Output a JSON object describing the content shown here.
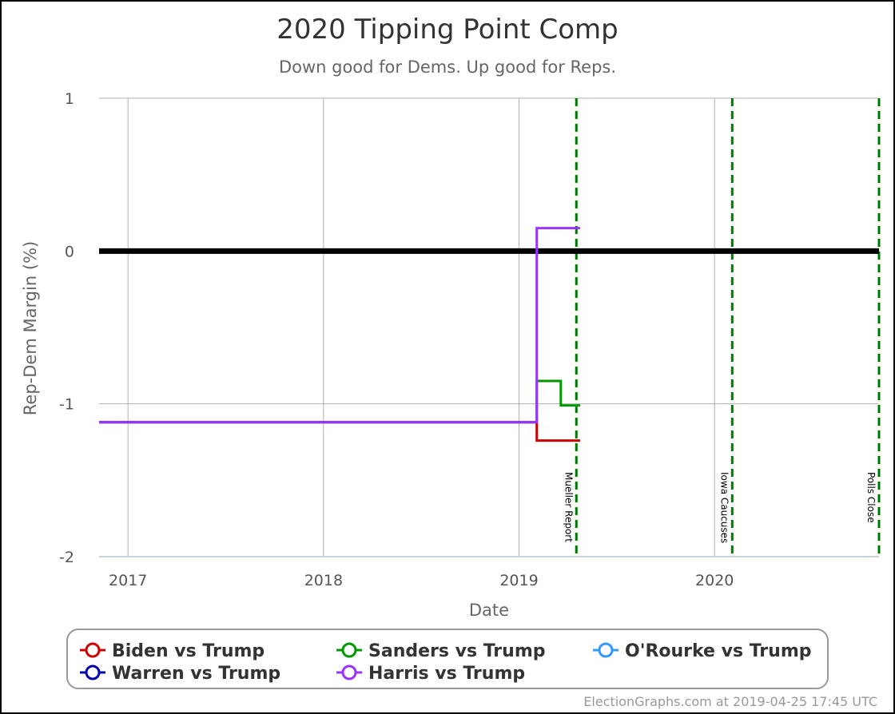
{
  "chart_data": {
    "type": "line",
    "title": "2020 Tipping Point Comp",
    "subtitle": "Down good for Dems. Up good for Reps.",
    "xlabel": "Date",
    "ylabel": "Rep-Dem Margin (%)",
    "xlim": [
      "2016-11-08",
      "2020-11-03"
    ],
    "ylim": [
      -2,
      1
    ],
    "x_ticks": [
      {
        "date": "2017-01-01",
        "label": "2017"
      },
      {
        "date": "2018-01-01",
        "label": "2018"
      },
      {
        "date": "2019-01-01",
        "label": "2019"
      },
      {
        "date": "2020-01-01",
        "label": "2020"
      }
    ],
    "y_ticks": [
      {
        "value": 1,
        "label": "1"
      },
      {
        "value": 0,
        "label": "0"
      },
      {
        "value": -1,
        "label": "-1"
      },
      {
        "value": -2,
        "label": "-2"
      }
    ],
    "grid": true,
    "reference_line": 0,
    "events": [
      {
        "date": "2019-04-18",
        "label": "Mueller Report"
      },
      {
        "date": "2020-02-03",
        "label": "Iowa Caucuses"
      },
      {
        "date": "2020-11-03",
        "label": "Polls Close"
      }
    ],
    "legend_position": "bottom",
    "series": [
      {
        "name": "Biden vs Trump",
        "color": "#cc0000",
        "points": [
          [
            "2016-11-08",
            -1.12
          ],
          [
            "2019-02-03",
            -1.12
          ],
          [
            "2019-02-03",
            -1.24
          ],
          [
            "2019-04-25",
            -1.24
          ]
        ]
      },
      {
        "name": "Sanders vs Trump",
        "color": "#009900",
        "points": [
          [
            "2016-11-08",
            -1.12
          ],
          [
            "2019-02-03",
            -1.12
          ],
          [
            "2019-02-03",
            -0.85
          ],
          [
            "2019-03-20",
            -0.85
          ],
          [
            "2019-03-20",
            -1.01
          ],
          [
            "2019-04-25",
            -1.01
          ]
        ]
      },
      {
        "name": "O'Rourke vs Trump",
        "color": "#3399ff",
        "points": [
          [
            "2016-11-08",
            -1.12
          ],
          [
            "2019-02-03",
            -1.12
          ]
        ]
      },
      {
        "name": "Warren vs Trump",
        "color": "#0000aa",
        "points": [
          [
            "2016-11-08",
            -1.12
          ],
          [
            "2019-02-03",
            -1.12
          ]
        ]
      },
      {
        "name": "Harris vs Trump",
        "color": "#9933ff",
        "points": [
          [
            "2016-11-08",
            -1.12
          ],
          [
            "2019-02-03",
            -1.12
          ],
          [
            "2019-02-03",
            0.15
          ],
          [
            "2019-04-25",
            0.15
          ]
        ]
      }
    ]
  },
  "credit": "ElectionGraphs.com at 2019-04-25 17:45 UTC"
}
